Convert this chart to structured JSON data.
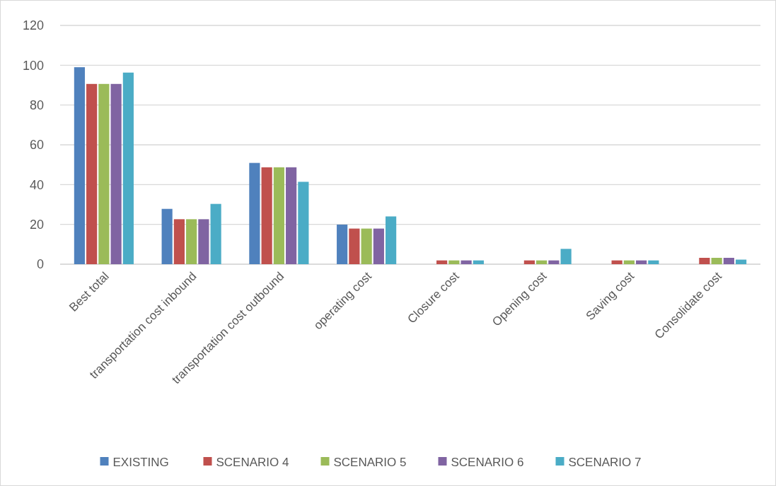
{
  "chart_data": {
    "type": "bar",
    "categories": [
      "Best total",
      "transportation cost inbound",
      "transportation cost outbound",
      "operating cost",
      "Closure cost",
      "Opening cost",
      "Saving cost",
      "Consolidate cost"
    ],
    "series": [
      {
        "name": "EXISTING",
        "color": "#4f81bd",
        "values": [
          99,
          27.8,
          50.9,
          19.9,
          0,
          0,
          0,
          0
        ]
      },
      {
        "name": "SCENARIO 4",
        "color": "#c0504d",
        "values": [
          90.6,
          22.6,
          48.7,
          17.9,
          1.9,
          1.9,
          1.9,
          3.2
        ]
      },
      {
        "name": "SCENARIO 5",
        "color": "#9bbb59",
        "values": [
          90.6,
          22.6,
          48.7,
          17.9,
          1.9,
          1.9,
          1.9,
          3.2
        ]
      },
      {
        "name": "SCENARIO 6",
        "color": "#8064a2",
        "values": [
          90.6,
          22.6,
          48.7,
          17.9,
          1.9,
          1.9,
          1.9,
          3.2
        ]
      },
      {
        "name": "SCENARIO 7",
        "color": "#4bacc6",
        "values": [
          96.3,
          30.3,
          41.4,
          24,
          1.9,
          7.7,
          1.9,
          2.3
        ]
      }
    ],
    "ylim": [
      0,
      120
    ],
    "yticks": [
      0,
      20,
      40,
      60,
      80,
      100,
      120
    ],
    "grid": "y",
    "legend": "bottom"
  }
}
